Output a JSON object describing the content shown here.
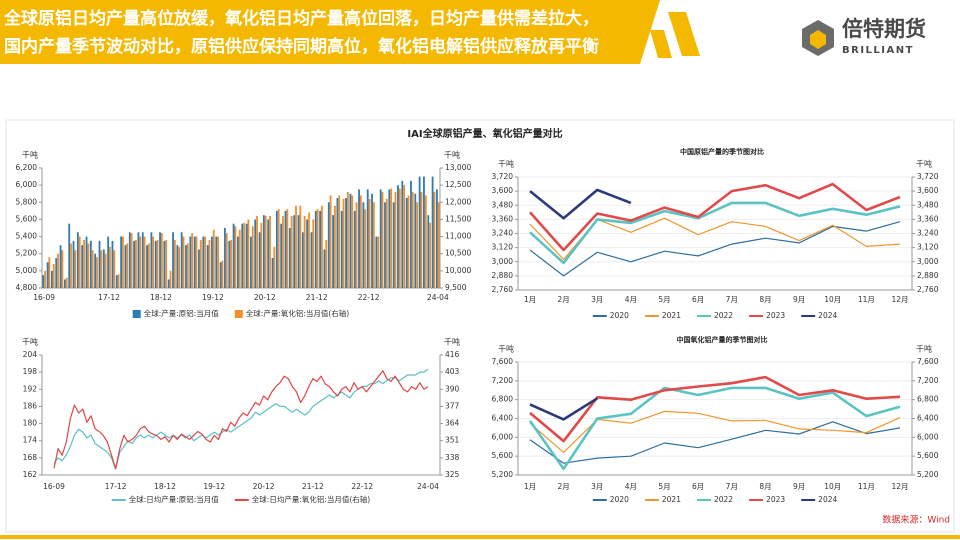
{
  "header": {
    "title_lines": [
      "全球原铝日均产量高位放缓，氧化铝日均产量高位回落，日均产量供需差拉大，",
      "国内产量季节波动对比，原铝供应保持同期高位，氧化铝电解铝供应释放再平衡"
    ]
  },
  "logo": {
    "name": "倍特期货",
    "subtitle": "BRILLIANT"
  },
  "source": "数据来源：Wind",
  "chart_data": [
    {
      "type": "bar",
      "title": "IAI全球原铝产量、氧化铝产量对比",
      "y_unit": "千吨",
      "y2_unit": "千吨",
      "categories": [
        "16-09",
        null,
        null,
        null,
        null,
        null,
        null,
        null,
        null,
        null,
        null,
        null,
        null,
        null,
        null,
        "17-12",
        null,
        null,
        null,
        null,
        null,
        null,
        null,
        null,
        null,
        null,
        null,
        "18-12",
        null,
        null,
        null,
        null,
        null,
        null,
        null,
        null,
        null,
        null,
        null,
        "19-12",
        null,
        null,
        null,
        null,
        null,
        null,
        null,
        null,
        null,
        null,
        null,
        "20-12",
        null,
        null,
        null,
        null,
        null,
        null,
        null,
        null,
        null,
        null,
        null,
        "21-12",
        null,
        null,
        null,
        null,
        null,
        null,
        null,
        null,
        null,
        null,
        null,
        "22-12",
        null,
        null,
        null,
        null,
        null,
        null,
        null,
        null,
        null,
        null,
        null,
        null,
        null,
        null,
        null,
        "24-04"
      ],
      "series": [
        {
          "name": "全球:产量:原铝:当月值",
          "color": "#2e7bb5",
          "values": [
            4950,
            5100,
            5000,
            5150,
            5300,
            4900,
            5550,
            5350,
            5450,
            5300,
            5400,
            5350,
            5200,
            5350,
            5250,
            5400,
            5350,
            4950,
            5400,
            5300,
            5450,
            5350,
            5450,
            5450,
            5300,
            5450,
            5350,
            5450,
            5350,
            4900,
            5450,
            5300,
            5450,
            5300,
            5400,
            5400,
            5250,
            5400,
            5300,
            5400,
            5400,
            5100,
            5500,
            5350,
            5550,
            5400,
            5550,
            5550,
            5400,
            5600,
            5450,
            5650,
            5600,
            5150,
            5700,
            5550,
            5700,
            5500,
            5650,
            5650,
            5450,
            5600,
            5450,
            5700,
            5700,
            5250,
            5800,
            5650,
            5850,
            5700,
            5850,
            5900,
            5700,
            5950,
            5800,
            5950,
            5900,
            5400,
            5950,
            5800,
            5950,
            5800,
            6000,
            6050,
            5850,
            6050,
            5900,
            6100,
            6100,
            5650,
            6100,
            5950
          ]
        },
        {
          "name": "全球:产量:氧化铝:当月值(右轴)",
          "color": "#f28e2b",
          "axis": "y2",
          "values": [
            10000,
            10400,
            10200,
            10500,
            10600,
            9800,
            10800,
            10600,
            11000,
            10900,
            10800,
            10600,
            10400,
            10600,
            10500,
            10700,
            10600,
            9900,
            11000,
            10800,
            11100,
            10900,
            11000,
            11000,
            10800,
            11000,
            10900,
            11100,
            10900,
            10000,
            10900,
            10700,
            11000,
            10800,
            11100,
            11000,
            10900,
            11000,
            10900,
            11200,
            11000,
            10300,
            11100,
            10900,
            11300,
            11200,
            11400,
            11500,
            11300,
            11600,
            11400,
            11600,
            11600,
            10700,
            11800,
            11600,
            11800,
            11600,
            11900,
            11900,
            11600,
            11700,
            11500,
            11800,
            11900,
            10900,
            12200,
            11900,
            12200,
            12100,
            12300,
            12200,
            12000,
            12200,
            11800,
            12100,
            12000,
            11000,
            12300,
            12100,
            12400,
            12300,
            12400,
            12500,
            12200,
            12300,
            12000,
            12300,
            12200,
            11400,
            12300,
            12000
          ]
        }
      ],
      "ylim": [
        4800,
        6200
      ],
      "yticks": [
        {
          "value": 4800,
          "label": "4,800"
        },
        {
          "value": 5000,
          "label": "5,000"
        },
        {
          "value": 5200,
          "label": "5,200"
        },
        {
          "value": 5400,
          "label": "5,400"
        },
        {
          "value": 5600,
          "label": "5,600"
        },
        {
          "value": 5800,
          "label": "5,800"
        },
        {
          "value": 6000,
          "label": "6,000"
        },
        {
          "value": 6200,
          "label": "6,200"
        }
      ],
      "y2lim": [
        9500,
        13000
      ],
      "y2ticks": [
        {
          "value": 9500,
          "label": "9,500"
        },
        {
          "value": 10000,
          "label": "10,000"
        },
        {
          "value": 10500,
          "label": "10,500"
        },
        {
          "value": 11000,
          "label": "11,000"
        },
        {
          "value": 11500,
          "label": "11,500"
        },
        {
          "value": 12000,
          "label": "12,000"
        },
        {
          "value": 12500,
          "label": "12,500"
        },
        {
          "value": 13000,
          "label": "13,000"
        }
      ],
      "grid": false,
      "legend": "bottom"
    },
    {
      "type": "line",
      "y_unit": "千吨",
      "y2_unit": "千吨",
      "categories": [
        "16-09",
        null,
        null,
        null,
        null,
        null,
        null,
        null,
        null,
        null,
        null,
        null,
        null,
        null,
        null,
        "17-12",
        null,
        null,
        null,
        null,
        null,
        null,
        null,
        null,
        null,
        null,
        null,
        "18-12",
        null,
        null,
        null,
        null,
        null,
        null,
        null,
        null,
        null,
        null,
        null,
        "19-12",
        null,
        null,
        null,
        null,
        null,
        null,
        null,
        null,
        null,
        null,
        null,
        "20-12",
        null,
        null,
        null,
        null,
        null,
        null,
        null,
        null,
        null,
        null,
        null,
        "21-12",
        null,
        null,
        null,
        null,
        null,
        null,
        null,
        null,
        null,
        null,
        null,
        "22-12",
        null,
        null,
        null,
        null,
        null,
        null,
        null,
        null,
        null,
        null,
        null,
        null,
        null,
        null,
        null,
        "24-04"
      ],
      "series": [
        {
          "name": "全球:日均产量:原铝:当月值",
          "color": "#5bc0c8",
          "values": [
            166,
            168,
            167,
            169,
            172,
            176,
            178,
            177,
            175,
            176,
            173,
            172,
            171,
            170,
            168,
            164,
            170,
            172,
            174,
            173,
            175,
            176,
            175,
            176,
            175,
            176,
            177,
            176,
            175,
            176,
            175,
            176,
            175,
            176,
            174,
            175,
            176,
            175,
            176,
            177,
            176,
            177,
            178,
            177,
            178,
            179,
            180,
            181,
            182,
            184,
            183,
            184,
            185,
            186,
            187,
            186,
            186,
            185,
            184,
            185,
            184,
            183,
            184,
            186,
            187,
            188,
            189,
            190,
            189,
            190,
            191,
            190,
            189,
            191,
            192,
            193,
            193,
            194,
            194,
            195,
            194,
            195,
            196,
            196,
            195,
            196,
            197,
            197,
            197,
            198,
            198,
            199
          ]
        },
        {
          "name": "全球:日均产量:氧化铝:当月值(右轴)",
          "color": "#e04646",
          "axis": "y2",
          "values": [
            330,
            345,
            340,
            350,
            368,
            378,
            372,
            375,
            365,
            370,
            360,
            358,
            355,
            350,
            340,
            330,
            345,
            355,
            350,
            352,
            355,
            360,
            362,
            358,
            356,
            355,
            352,
            354,
            350,
            355,
            352,
            356,
            354,
            352,
            355,
            358,
            356,
            352,
            350,
            355,
            352,
            360,
            358,
            365,
            362,
            368,
            372,
            370,
            375,
            380,
            378,
            385,
            382,
            388,
            392,
            395,
            400,
            398,
            392,
            388,
            380,
            385,
            392,
            398,
            396,
            400,
            394,
            392,
            388,
            385,
            390,
            392,
            388,
            395,
            390,
            392,
            388,
            392,
            396,
            400,
            404,
            398,
            396,
            400,
            395,
            390,
            388,
            392,
            390,
            395,
            390,
            392
          ]
        }
      ],
      "ylim": [
        162,
        204
      ],
      "yticks": [
        162,
        168,
        174,
        180,
        186,
        192,
        198,
        204
      ],
      "y2lim": [
        325,
        416
      ],
      "y2ticks": [
        325,
        338,
        351,
        364,
        377,
        390,
        403,
        416
      ],
      "grid": false,
      "legend": "bottom"
    },
    {
      "type": "line",
      "title": "中国原铝产量的季节图对比",
      "y_unit": "千吨",
      "y2_unit": "千吨",
      "categories": [
        "1月",
        "2月",
        "3月",
        "4月",
        "5月",
        "6月",
        "7月",
        "8月",
        "9月",
        "10月",
        "11月",
        "12月"
      ],
      "series": [
        {
          "name": "2020",
          "color": "#2f6f9f",
          "values": [
            3100,
            2880,
            3080,
            3000,
            3090,
            3050,
            3150,
            3200,
            3160,
            3300,
            3260,
            3340
          ]
        },
        {
          "name": "2021",
          "color": "#f0962f",
          "values": [
            3320,
            3020,
            3360,
            3250,
            3370,
            3230,
            3340,
            3300,
            3180,
            3310,
            3130,
            3150
          ]
        },
        {
          "name": "2022",
          "color": "#5cc3c3",
          "values": [
            3250,
            2990,
            3360,
            3330,
            3430,
            3370,
            3500,
            3500,
            3390,
            3450,
            3400,
            3470
          ]
        },
        {
          "name": "2023",
          "color": "#e04a4a",
          "values": [
            3420,
            3100,
            3410,
            3350,
            3460,
            3380,
            3600,
            3650,
            3540,
            3660,
            3440,
            3550
          ]
        },
        {
          "name": "2024",
          "color": "#2b3b7a",
          "values": [
            3600,
            3370,
            3610,
            3500,
            null,
            null,
            null,
            null,
            null,
            null,
            null,
            null
          ]
        }
      ],
      "ylim": [
        2760,
        3720
      ],
      "yticks": [
        {
          "value": 2760,
          "label": "2,760"
        },
        {
          "value": 2880,
          "label": "2,880"
        },
        {
          "value": 3000,
          "label": "3,000"
        },
        {
          "value": 3120,
          "label": "3,120"
        },
        {
          "value": 3240,
          "label": "3,240"
        },
        {
          "value": 3360,
          "label": "3,360"
        },
        {
          "value": 3480,
          "label": "3,480"
        },
        {
          "value": 3600,
          "label": "3,600"
        },
        {
          "value": 3720,
          "label": "3,720"
        }
      ],
      "y2lim": [
        2760,
        3720
      ],
      "y2ticks": [
        {
          "value": 2760,
          "label": "2,760"
        },
        {
          "value": 2880,
          "label": "2,880"
        },
        {
          "value": 3000,
          "label": "3,000"
        },
        {
          "value": 3120,
          "label": "3,120"
        },
        {
          "value": 3240,
          "label": "3,240"
        },
        {
          "value": 3360,
          "label": "3,360"
        },
        {
          "value": 3480,
          "label": "3,480"
        },
        {
          "value": 3600,
          "label": "3,600"
        },
        {
          "value": 3720,
          "label": "3,720"
        }
      ],
      "grid": true,
      "legend": "bottom"
    },
    {
      "type": "line",
      "title": "中国氧化铝产量的季节图对比",
      "y_unit": "千吨",
      "y2_unit": "千吨",
      "categories": [
        "1月",
        "2月",
        "3月",
        "4月",
        "5月",
        "6月",
        "7月",
        "8月",
        "9月",
        "10月",
        "11月",
        "12月"
      ],
      "series": [
        {
          "name": "2020",
          "color": "#2f6f9f",
          "values": [
            5950,
            5450,
            5560,
            5600,
            5880,
            5780,
            5960,
            6150,
            6070,
            6330,
            6080,
            6200
          ]
        },
        {
          "name": "2021",
          "color": "#f0962f",
          "values": [
            6300,
            5680,
            6380,
            6300,
            6550,
            6510,
            6350,
            6360,
            6180,
            6150,
            6100,
            6420
          ]
        },
        {
          "name": "2022",
          "color": "#5cc3c3",
          "values": [
            6350,
            5330,
            6400,
            6500,
            7050,
            6900,
            7050,
            7050,
            6820,
            6950,
            6450,
            6650
          ]
        },
        {
          "name": "2023",
          "color": "#e04a4a",
          "values": [
            6520,
            5920,
            6850,
            6800,
            7000,
            7080,
            7150,
            7280,
            6900,
            7000,
            6820,
            6860
          ]
        },
        {
          "name": "2024",
          "color": "#2b3b7a",
          "values": [
            6700,
            6380,
            6830,
            null,
            null,
            null,
            null,
            null,
            null,
            null,
            null,
            null
          ]
        }
      ],
      "ylim": [
        5200,
        7600
      ],
      "yticks": [
        {
          "value": 5200,
          "label": "5,200"
        },
        {
          "value": 5600,
          "label": "5,600"
        },
        {
          "value": 6000,
          "label": "6,000"
        },
        {
          "value": 6400,
          "label": "6,400"
        },
        {
          "value": 6800,
          "label": "6,800"
        },
        {
          "value": 7200,
          "label": "7,200"
        },
        {
          "value": 7600,
          "label": "7,600"
        }
      ],
      "y2lim": [
        5200,
        7600
      ],
      "y2ticks": [
        {
          "value": 5200,
          "label": "5,200"
        },
        {
          "value": 5600,
          "label": "5,600"
        },
        {
          "value": 6000,
          "label": "6,000"
        },
        {
          "value": 6400,
          "label": "6,400"
        },
        {
          "value": 6800,
          "label": "6,800"
        },
        {
          "value": 7200,
          "label": "7,200"
        },
        {
          "value": 7600,
          "label": "7,600"
        }
      ],
      "grid": true,
      "legend": "bottom"
    }
  ]
}
